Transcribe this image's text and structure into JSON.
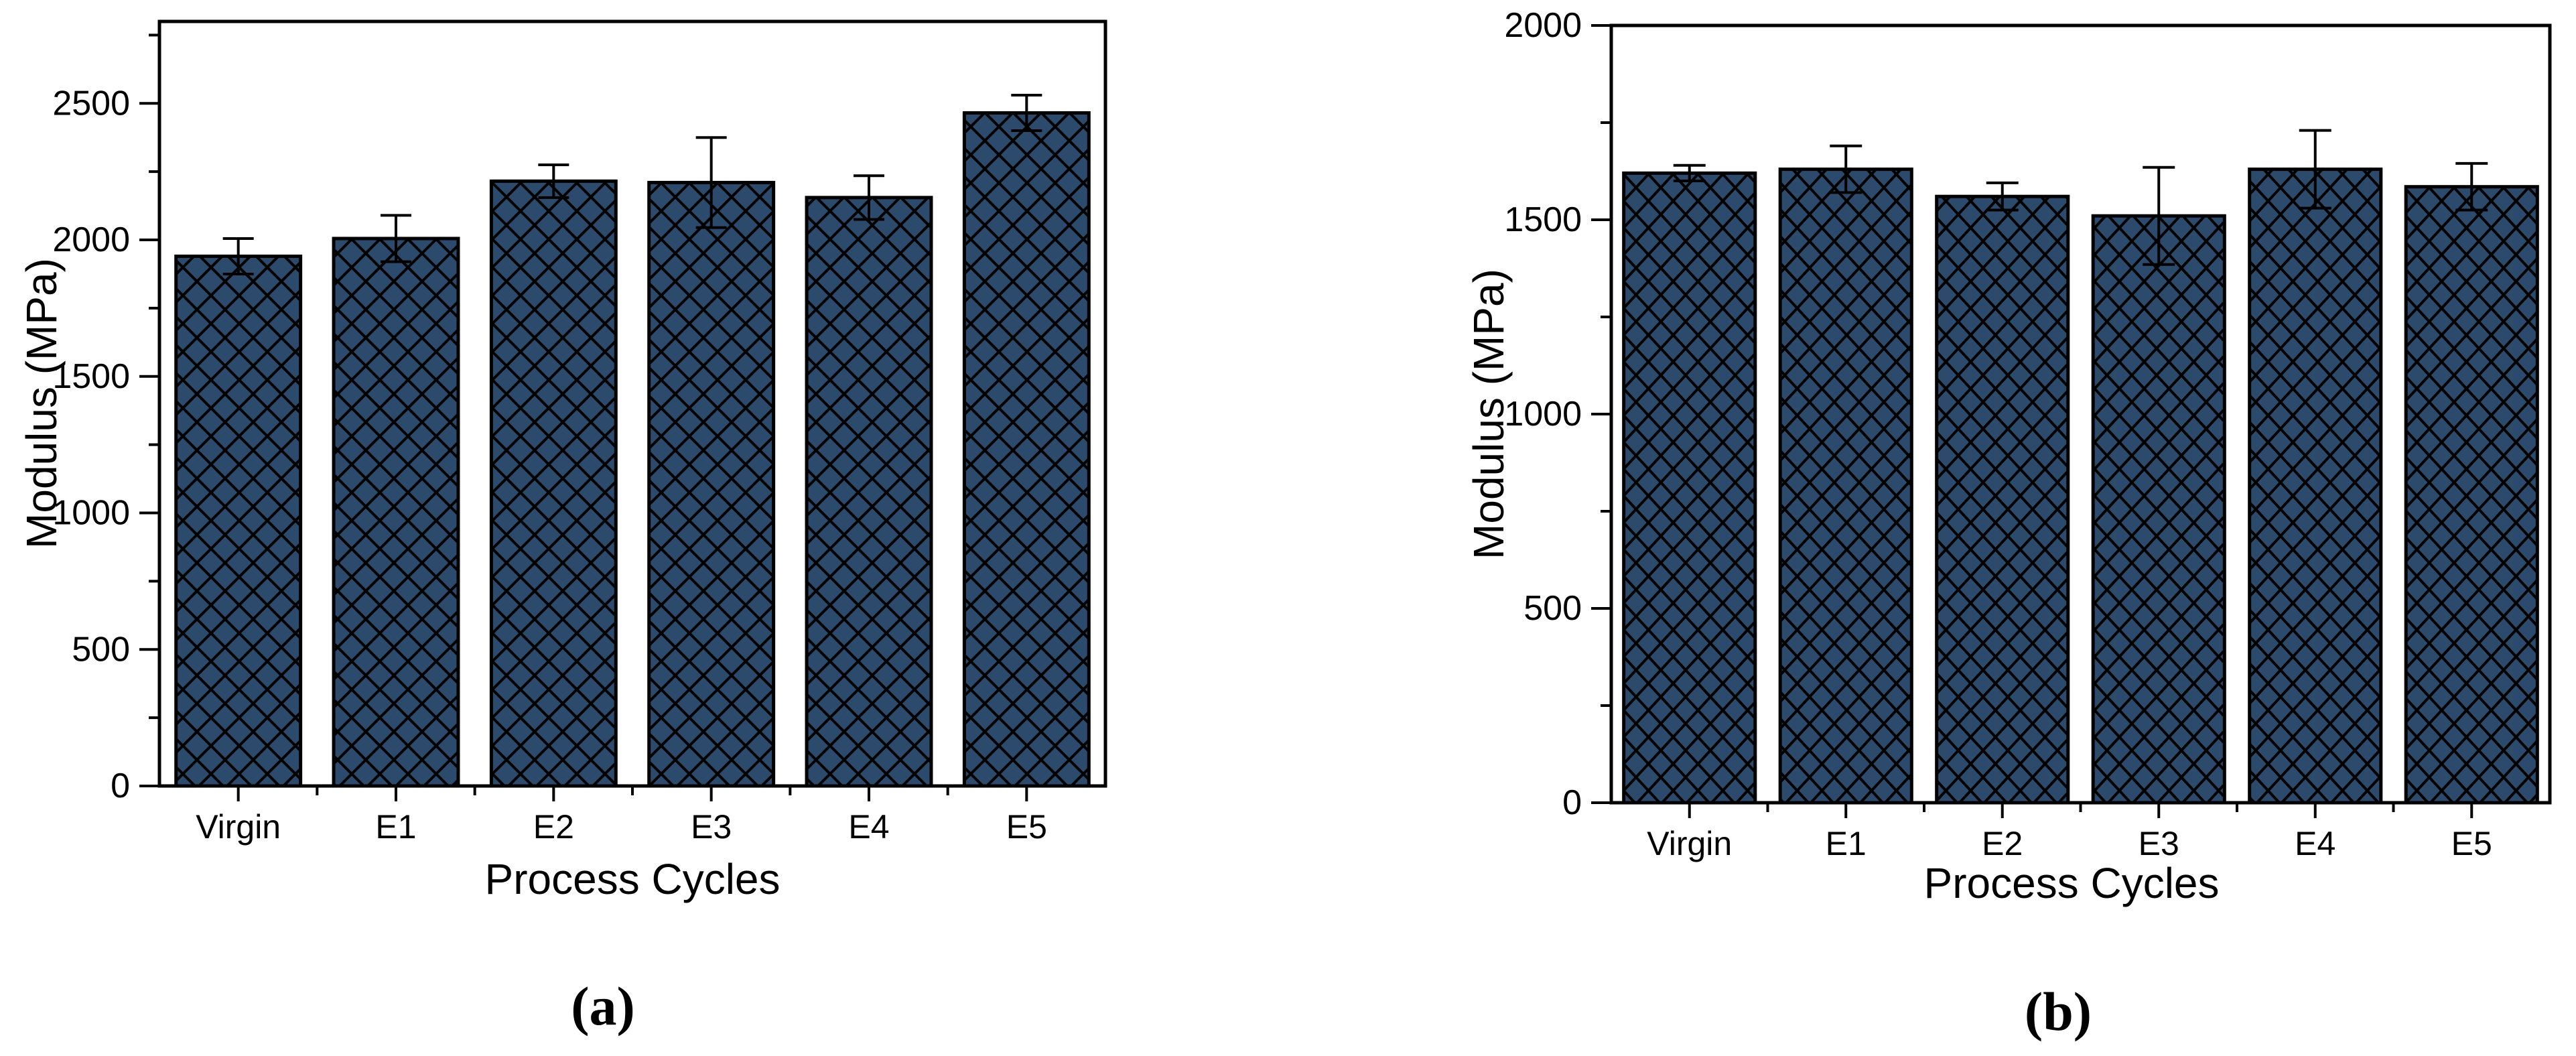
{
  "page": {
    "background": "#ffffff"
  },
  "chart_data": [
    {
      "type": "bar",
      "panel_label": "(a)",
      "title": "",
      "xlabel": "Process Cycles",
      "ylabel": "Modulus (MPa)",
      "categories": [
        "Virgin",
        "E1",
        "E2",
        "E3",
        "E4",
        "E5"
      ],
      "values": [
        1940,
        2005,
        2215,
        2210,
        2155,
        2465
      ],
      "errors": [
        65,
        85,
        60,
        165,
        80,
        65
      ],
      "ylim": [
        0,
        2800
      ],
      "yticks": [
        0,
        500,
        1000,
        1500,
        2000,
        2500
      ],
      "minor_step": 250,
      "grid": false,
      "legend": "none",
      "bar_fill": "#2c4b6c",
      "hatch_style": "diagonal-crosshatch",
      "hatch_color": "#000000",
      "outline_color": "#000000",
      "error_color": "#000000"
    },
    {
      "type": "bar",
      "panel_label": "(b)",
      "title": "",
      "xlabel": "Process Cycles",
      "ylabel": "Modulus (MPa)",
      "categories": [
        "Virgin",
        "E1",
        "E2",
        "E3",
        "E4",
        "E5"
      ],
      "values": [
        1620,
        1630,
        1560,
        1510,
        1630,
        1585
      ],
      "errors": [
        20,
        60,
        35,
        125,
        100,
        60
      ],
      "ylim": [
        0,
        2000
      ],
      "yticks": [
        0,
        500,
        1000,
        1500,
        2000
      ],
      "minor_step": 250,
      "grid": false,
      "legend": "none",
      "bar_fill": "#2c4b6c",
      "hatch_style": "diagonal-crosshatch",
      "hatch_color": "#000000",
      "outline_color": "#000000",
      "error_color": "#000000"
    }
  ]
}
